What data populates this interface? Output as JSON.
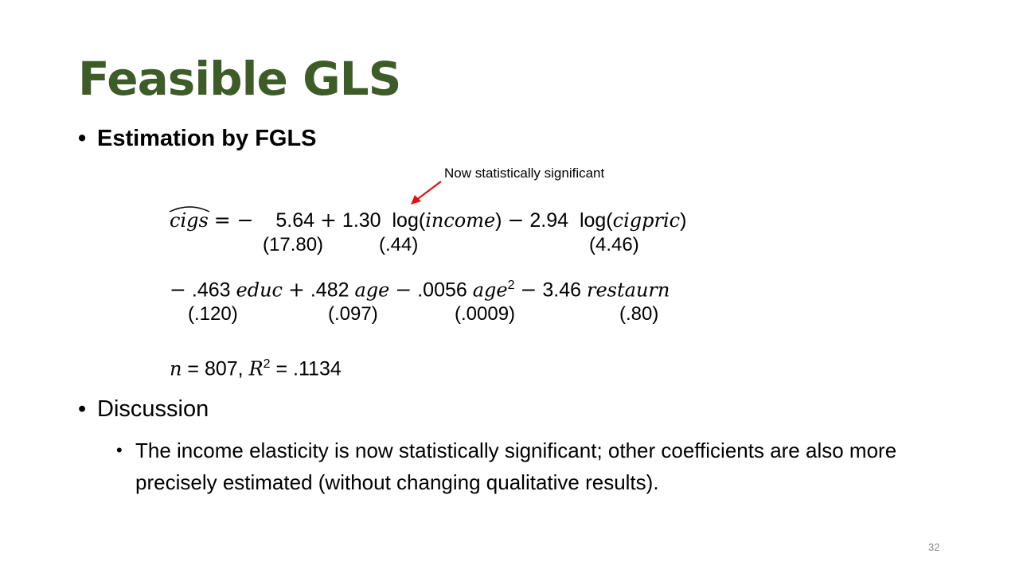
{
  "title": "Feasible GLS",
  "bullet_fgls": "Estimation by FGLS",
  "annotation": "Now statistically significant",
  "equation": {
    "lhs": "cigs",
    "eq_minus": "= −",
    "c0": "5.64",
    "plus1": "+",
    "c_income": "1.30",
    "log_income_fn": "log(",
    "log_income_var": "income",
    "close1": ")",
    "minus1": "−",
    "c_cigpric": "2.94",
    "log_cigpric_fn": "log(",
    "log_cigpric_var": "cigpric",
    "close2": ")",
    "se_c0": "(17.80)",
    "se_income": "(.44)",
    "se_cigpric": "(4.46)",
    "row2_minus": "−",
    "c_educ": ".463",
    "v_educ": "educ",
    "plus2": "+",
    "c_age": ".482",
    "v_age": "age",
    "minus2": "−",
    "c_agesq": ".0056",
    "v_agesq": "age",
    "exp_2": "2",
    "minus3": "−",
    "c_restaurn": "3.46",
    "v_restaurn": "restaurn",
    "se_educ": "(.120)",
    "se_age": "(.097)",
    "se_agesq": "(.0009)",
    "se_restaurn": "(.80)",
    "n_var": "n",
    "n_eq": "= 807,",
    "r_var": "R",
    "r_exp": "2",
    "r_eq": "= .1134"
  },
  "bullet_discussion": "Discussion",
  "discussion_text": "The income elasticity is now statistically significant; other coefficients are also more precisely estimated (without changing qualitative results).",
  "page_number": "32",
  "colors": {
    "title": "#3d5c27",
    "arrow": "#e01010"
  }
}
